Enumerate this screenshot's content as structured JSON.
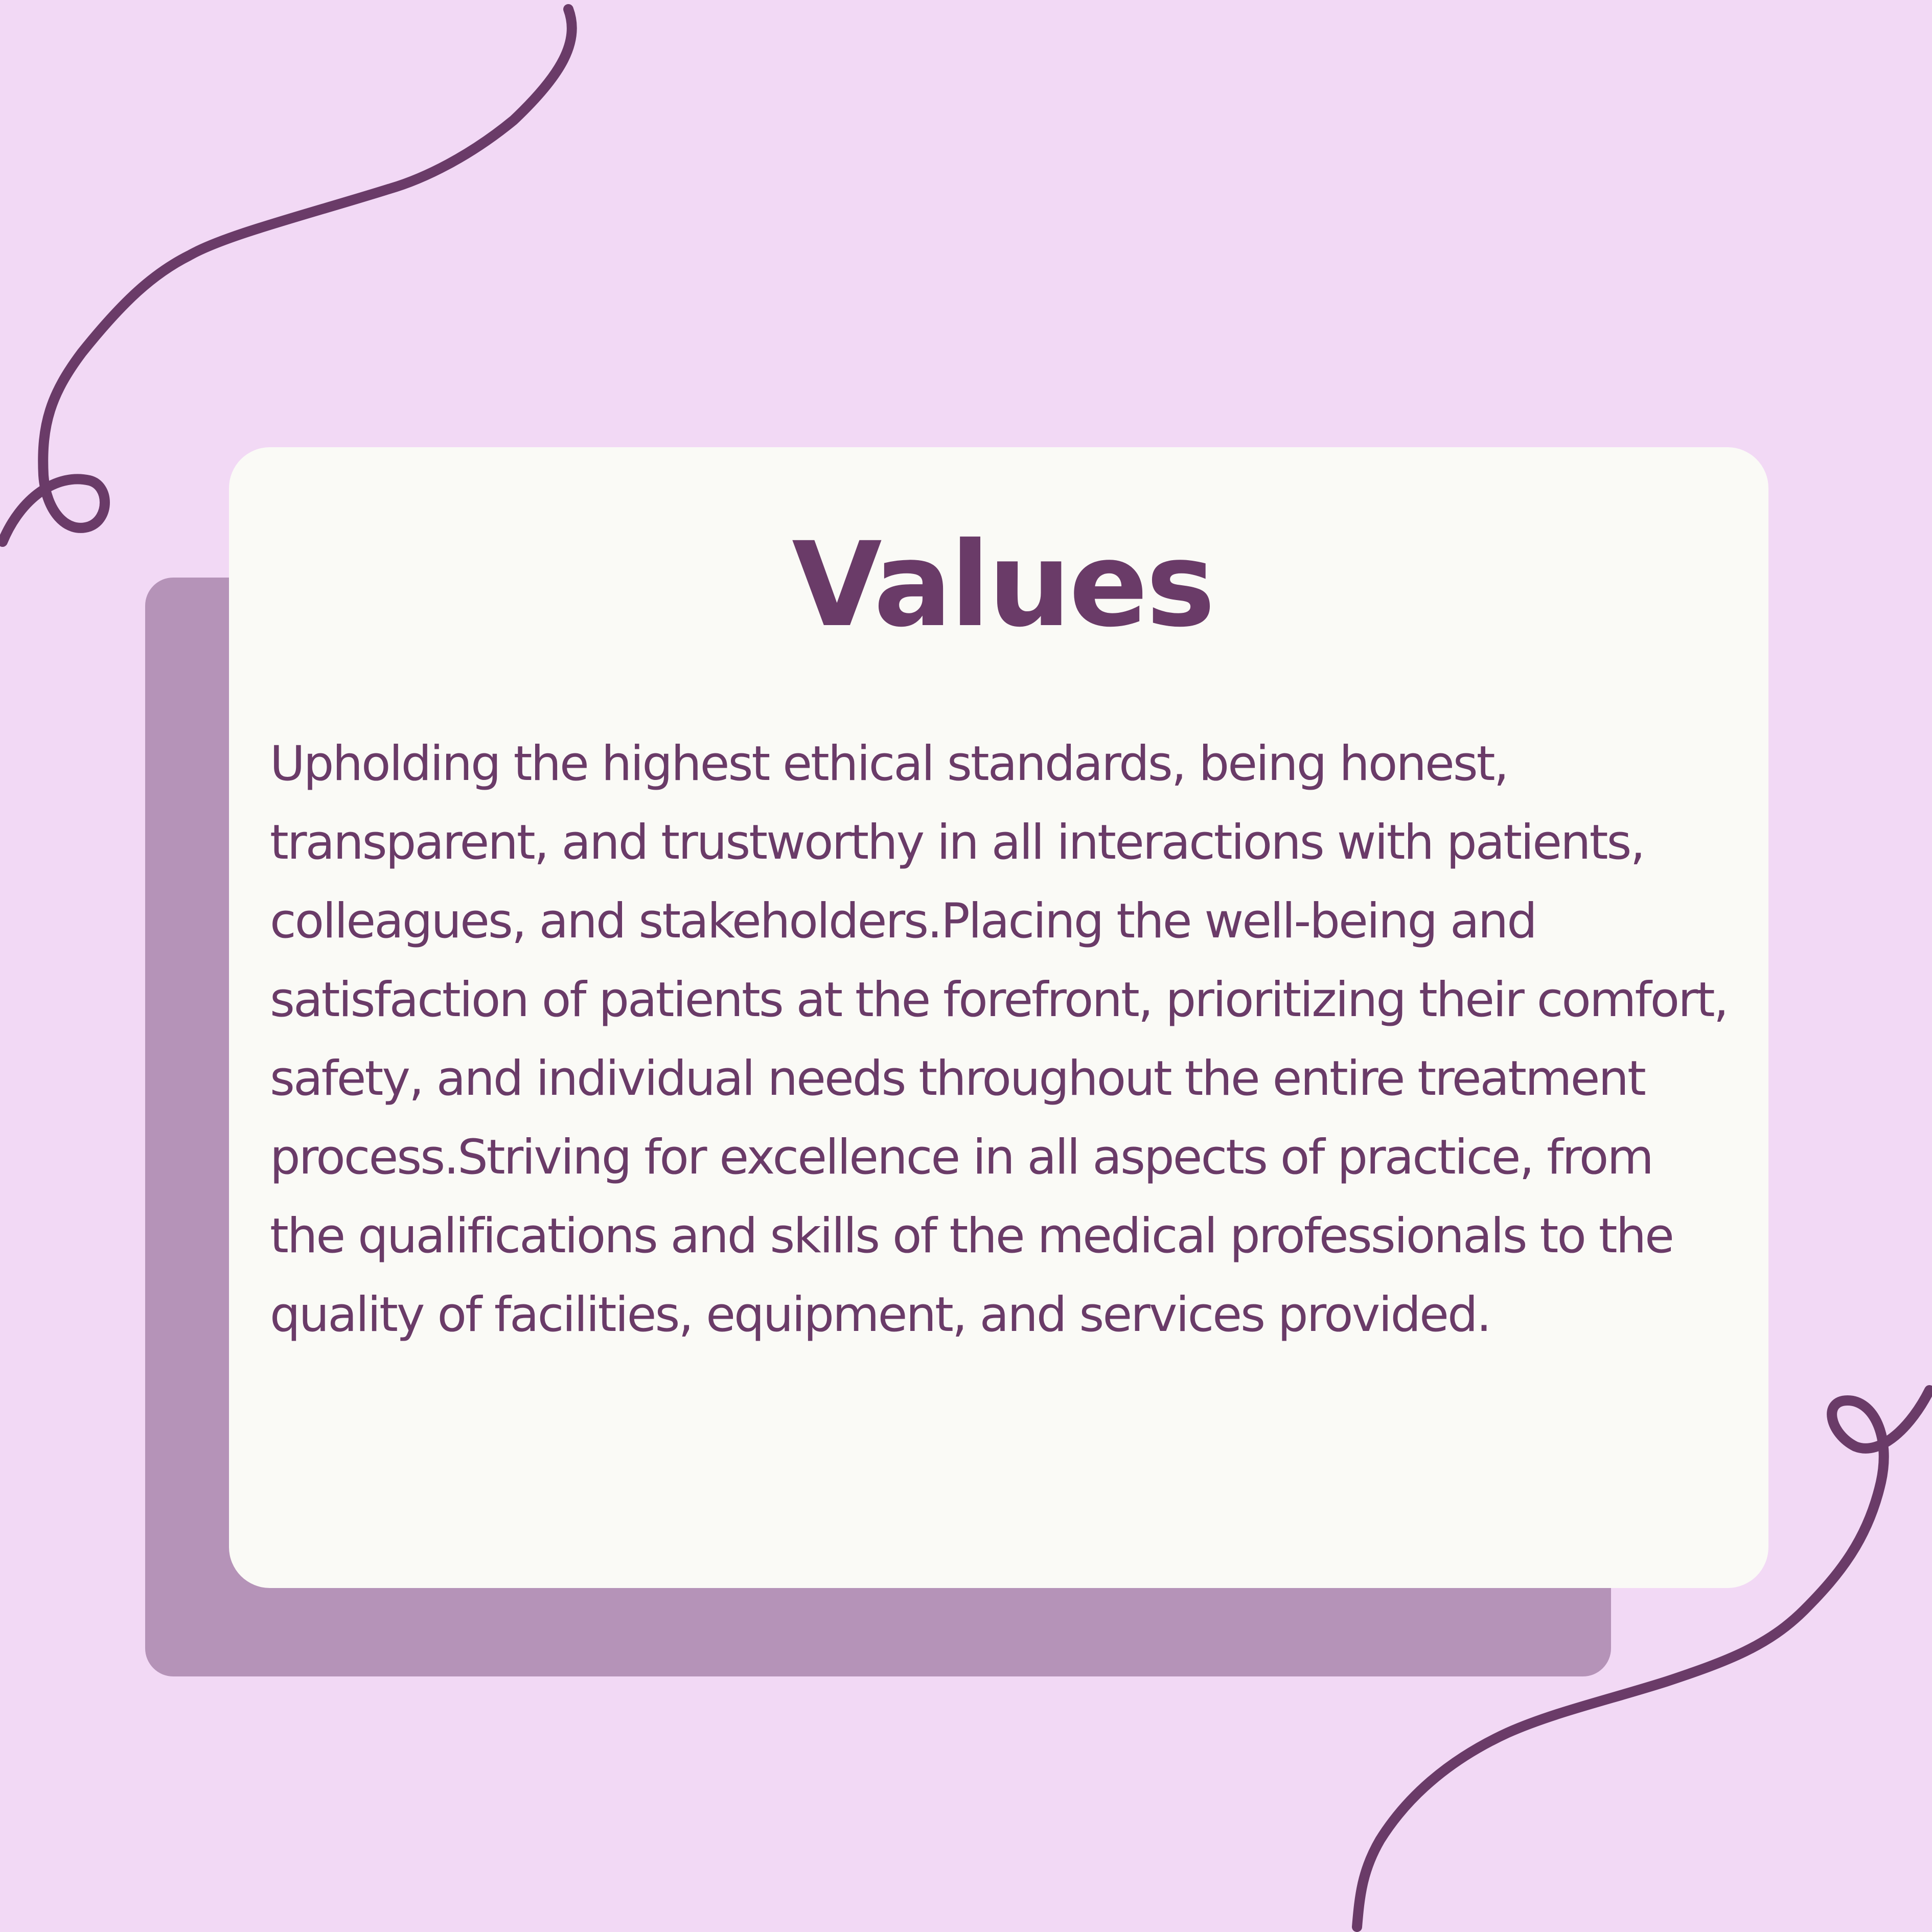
{
  "card": {
    "title": "Values",
    "body": "Upholding the highest ethical standards, being honest, transparent, and trustworthy in all interactions with patients, colleagues, and stakeholders.Placing the well-being and satisfaction of patients at the forefront, prioritizing their comfort, safety, and individual needs throughout the entire treatment process.Striving for excellence in all aspects of practice, from the qualifications and skills of the medical professionals to the quality of facilities, equipment, and services provided."
  },
  "colors": {
    "background": "#f2d9f5",
    "card": "#fafaf6",
    "card_shadow": "#b593b8",
    "accent": "#6a3b68"
  }
}
